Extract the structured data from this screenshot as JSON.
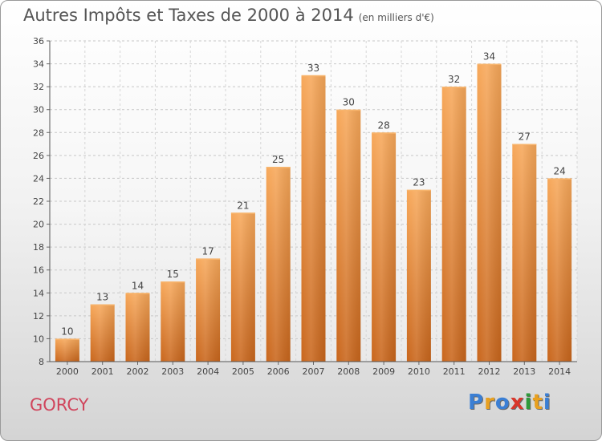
{
  "title": "Autres Impôts et Taxes de 2000 à 2014",
  "unit": "(en milliers d'€)",
  "commune": "GORCY",
  "logo": {
    "letters": [
      "P",
      "r",
      "o",
      "x",
      "i",
      "t",
      "i"
    ],
    "colors": [
      "#3b7fd4",
      "#e8a020",
      "#3b7fd4",
      "#d9372b",
      "#2e9a3a",
      "#e8a020",
      "#3b7fd4"
    ]
  },
  "chart_data": {
    "type": "bar",
    "categories": [
      "2000",
      "2001",
      "2002",
      "2003",
      "2004",
      "2005",
      "2006",
      "2007",
      "2008",
      "2009",
      "2010",
      "2011",
      "2012",
      "2013",
      "2014"
    ],
    "values": [
      10,
      13,
      14,
      15,
      17,
      21,
      25,
      33,
      30,
      28,
      23,
      32,
      34,
      27,
      24
    ],
    "ylim": [
      8,
      36
    ],
    "yticks": [
      8,
      10,
      12,
      14,
      16,
      18,
      20,
      22,
      24,
      26,
      28,
      30,
      32,
      34,
      36
    ],
    "grid": true,
    "bar_color": "#f0913a"
  }
}
